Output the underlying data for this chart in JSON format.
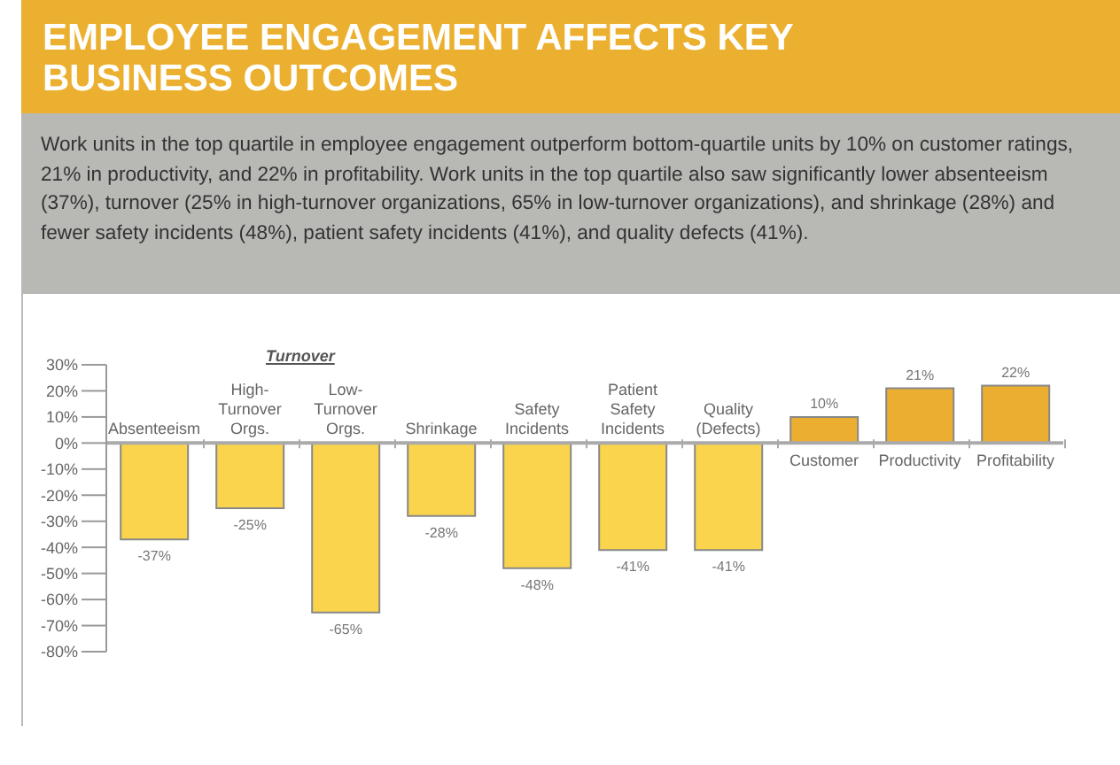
{
  "chart_data": {
    "type": "bar",
    "title": "EMPLOYEE ENGAGEMENT AFFECTS KEY BUSINESS OUTCOMES",
    "subtitle": "Work units in the top quartile in employee engagement outperform bottom-quartile units by 10% on customer ratings, 21% in productivity, and 22% in profitability. Work units in the top quartile also saw significantly lower absenteeism (37%), turnover (25% in high-turnover organizations, 65% in low-turnover organizations), and shrinkage (28%) and fewer safety incidents (48%), patient safety incidents (41%), and quality defects (41%).",
    "annotations": [
      "Turnover"
    ],
    "categories": [
      "Absenteeism",
      "High-Turnover Orgs.",
      "Low-Turnover Orgs.",
      "Shrinkage",
      "Safety Incidents",
      "Patient Safety Incidents",
      "Quality (Defects)",
      "Customer",
      "Productivity",
      "Profitability"
    ],
    "values": [
      -37,
      -25,
      -65,
      -28,
      -48,
      -41,
      -41,
      10,
      21,
      22
    ],
    "value_labels": [
      "-37%",
      "-25%",
      "-65%",
      "-28%",
      "-48%",
      "-41%",
      "-41%",
      "10%",
      "21%",
      "22%"
    ],
    "colors": [
      "#fad44c",
      "#fad44c",
      "#fad44c",
      "#fad44c",
      "#fad44c",
      "#fad44c",
      "#fad44c",
      "#ecae30",
      "#ecae30",
      "#ecae30"
    ],
    "ylim": [
      -80,
      30
    ],
    "yticks": [
      {
        "value": 30,
        "label": "30%"
      },
      {
        "value": 20,
        "label": "20%"
      },
      {
        "value": 10,
        "label": "10%"
      },
      {
        "value": 0,
        "label": "0%"
      },
      {
        "value": -10,
        "label": "-10%"
      },
      {
        "value": -20,
        "label": "-20%"
      },
      {
        "value": -30,
        "label": "-30%"
      },
      {
        "value": -40,
        "label": "-40%"
      },
      {
        "value": -50,
        "label": "-50%"
      },
      {
        "value": -60,
        "label": "-60%"
      },
      {
        "value": -70,
        "label": "-70%"
      },
      {
        "value": -80,
        "label": "-80%"
      }
    ],
    "grid": false,
    "legend": false
  }
}
